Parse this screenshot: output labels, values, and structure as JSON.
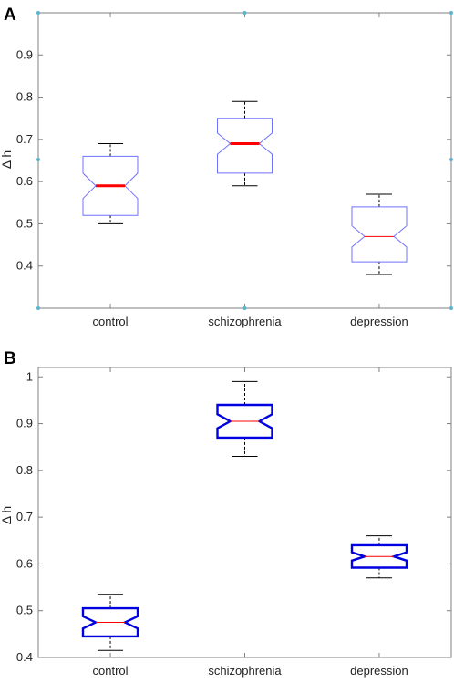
{
  "colors": {
    "axis": "#808080",
    "whisker": "#000000",
    "box_thin": "#7070ff",
    "box_thick": "#0000e0",
    "median": "#ff0000",
    "corner_marker": "#5ab4d6"
  },
  "chart_data": [
    {
      "type": "box",
      "panel_label": "A",
      "ylabel": "Δ h",
      "ylim": [
        0.3,
        1.0
      ],
      "yticks": [
        0.4,
        0.5,
        0.6,
        0.7,
        0.8,
        0.9
      ],
      "categories": [
        "control",
        "schizophrenia",
        "depression"
      ],
      "box_style": "thin",
      "boxes": [
        {
          "category": "control",
          "whisker_low": 0.5,
          "q1": 0.52,
          "notch_low": 0.56,
          "median": 0.59,
          "notch_high": 0.62,
          "q3": 0.66,
          "whisker_high": 0.69,
          "median_bold": true
        },
        {
          "category": "schizophrenia",
          "whisker_low": 0.59,
          "q1": 0.62,
          "notch_low": 0.665,
          "median": 0.69,
          "notch_high": 0.715,
          "q3": 0.75,
          "whisker_high": 0.79,
          "median_bold": true
        },
        {
          "category": "depression",
          "whisker_low": 0.38,
          "q1": 0.41,
          "notch_low": 0.445,
          "median": 0.47,
          "notch_high": 0.495,
          "q3": 0.54,
          "whisker_high": 0.57,
          "median_bold": false
        }
      ]
    },
    {
      "type": "box",
      "panel_label": "B",
      "ylabel": "Δ h",
      "ylim": [
        0.4,
        1.02
      ],
      "yticks": [
        0.4,
        0.5,
        0.6,
        0.7,
        0.8,
        0.9,
        1
      ],
      "categories": [
        "control",
        "schizophrenia",
        "depression"
      ],
      "box_style": "thick",
      "boxes": [
        {
          "category": "control",
          "whisker_low": 0.415,
          "q1": 0.445,
          "notch_low": 0.462,
          "median": 0.475,
          "notch_high": 0.488,
          "q3": 0.505,
          "whisker_high": 0.535,
          "median_bold": false
        },
        {
          "category": "schizophrenia",
          "whisker_low": 0.83,
          "q1": 0.87,
          "notch_low": 0.89,
          "median": 0.905,
          "notch_high": 0.92,
          "q3": 0.94,
          "whisker_high": 0.99,
          "median_bold": false
        },
        {
          "category": "depression",
          "whisker_low": 0.57,
          "q1": 0.592,
          "notch_low": 0.607,
          "median": 0.616,
          "notch_high": 0.625,
          "q3": 0.64,
          "whisker_high": 0.66,
          "median_bold": false
        }
      ]
    }
  ]
}
